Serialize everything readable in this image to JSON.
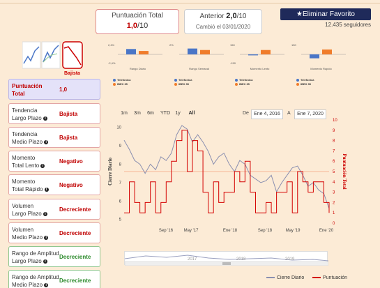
{
  "header": {
    "score_title": "Puntuación Total",
    "score_value": "1,0",
    "score_scale": "/10",
    "prev_title": "Anterior",
    "prev_value": "2,0",
    "prev_scale": "/10",
    "prev_date": "Cambió el 03/01/2020",
    "fav_button": "Eliminar Favorito",
    "followers": "12.435 seguidores"
  },
  "trend_icons": {
    "selected_label": "Bajista"
  },
  "bar_charts": [
    {
      "caption": "Rango Diario",
      "ymax": "2,4%",
      "ymin": "-2,4%",
      "values": [
        0.55,
        0.35
      ]
    },
    {
      "caption": "Rango Semanal",
      "ymax": "2%",
      "ymin": "",
      "values": [
        0.6,
        0.45
      ]
    },
    {
      "caption": "Momento Lento",
      "ymax": "150",
      "ymin": "-150",
      "values": [
        -0.1,
        0.45
      ]
    },
    {
      "caption": "Momento Rápido",
      "ymax": "150",
      "ymin": "",
      "values": [
        -0.4,
        0.5
      ]
    }
  ],
  "bar_legend": [
    "Telefonica",
    "IBEX 35"
  ],
  "colors": {
    "series_a": "#4a76c7",
    "series_b": "#f07c2a",
    "price_line": "#8a8fb0",
    "score_line": "#d40000",
    "ref_line": "#f4a582"
  },
  "indicators": [
    {
      "label1": "Puntuación",
      "label2": "Total",
      "value": "1,0",
      "tone": "red",
      "kind": "score"
    },
    {
      "label1": "Tendencia",
      "label2": "Largo Plazo",
      "value": "Bajista",
      "tone": "red",
      "kind": "red"
    },
    {
      "label1": "Tendencia",
      "label2": "Medio Plazo",
      "value": "Bajista",
      "tone": "red",
      "kind": "red"
    },
    {
      "label1": "Momento",
      "label2": "Total Lento",
      "value": "Negativo",
      "tone": "red",
      "kind": "red"
    },
    {
      "label1": "Momento",
      "label2": "Total Rápido",
      "value": "Negativo",
      "tone": "red",
      "kind": "red"
    },
    {
      "label1": "Volumen",
      "label2": "Largo Plazo",
      "value": "Decreciente",
      "tone": "red",
      "kind": "red"
    },
    {
      "label1": "Volumen",
      "label2": "Medio Plazo",
      "value": "Decreciente",
      "tone": "red",
      "kind": "red"
    },
    {
      "label1": "Rango de Amplitud",
      "label2": "Largo Plazo",
      "value": "Decreciente",
      "tone": "green",
      "kind": "green"
    },
    {
      "label1": "Rango de Amplitud",
      "label2": "Medio Plazo",
      "value": "Decreciente",
      "tone": "green",
      "kind": "green"
    }
  ],
  "range_buttons": [
    "1m",
    "3m",
    "6m",
    "YTD",
    "1y",
    "All"
  ],
  "active_range": "All",
  "date_from_label": "De",
  "date_from": "Ene 4, 2016",
  "date_to_label": "A",
  "date_to": "Ene 7, 2020",
  "chart_data": {
    "type": "line",
    "ylabel_left": "Cierre Diario",
    "ylabel_right": "Puntuación Total",
    "x_ticks": [
      "Sep '16",
      "May '17",
      "Ene '18",
      "Sep '18",
      "May '19",
      "Ene '20"
    ],
    "y_left_ticks": [
      "5",
      "6",
      "7",
      "8",
      "9",
      "10"
    ],
    "y_left_range": [
      4.8,
      10.4
    ],
    "y_right_ticks": [
      "0",
      "1",
      "2",
      "3",
      "4",
      "5",
      "6",
      "7",
      "8",
      "9",
      "10"
    ],
    "y_right_range": [
      0,
      10
    ],
    "reference_line": 5,
    "series": [
      {
        "name": "Cierre Diario",
        "values": [
          9.3,
          8.8,
          8.2,
          8.0,
          7.5,
          8.0,
          7.7,
          8.4,
          8.2,
          8.6,
          9.6,
          10.1,
          9.9,
          9.2,
          9.6,
          9.2,
          8.7,
          8.0,
          8.4,
          8.6,
          8.0,
          7.6,
          8.2,
          8.0,
          7.4,
          7.2,
          7.0,
          7.1,
          7.4,
          6.5,
          7.0,
          7.4,
          7.8,
          7.9,
          7.4,
          6.8,
          7.0,
          6.6,
          6.4,
          5.6
        ]
      },
      {
        "name": "Puntuación",
        "values": [
          1,
          4,
          2,
          1,
          2,
          4,
          1,
          2,
          4,
          6,
          8,
          9,
          5,
          8,
          7,
          3,
          1,
          4,
          2,
          3,
          3,
          5,
          4,
          6,
          3,
          1,
          1,
          2,
          1,
          3,
          3,
          4,
          1,
          5,
          4,
          3,
          4,
          4,
          2,
          1
        ]
      }
    ],
    "navigator_ticks": [
      "2017",
      "2018",
      "2019",
      "2020"
    ]
  }
}
